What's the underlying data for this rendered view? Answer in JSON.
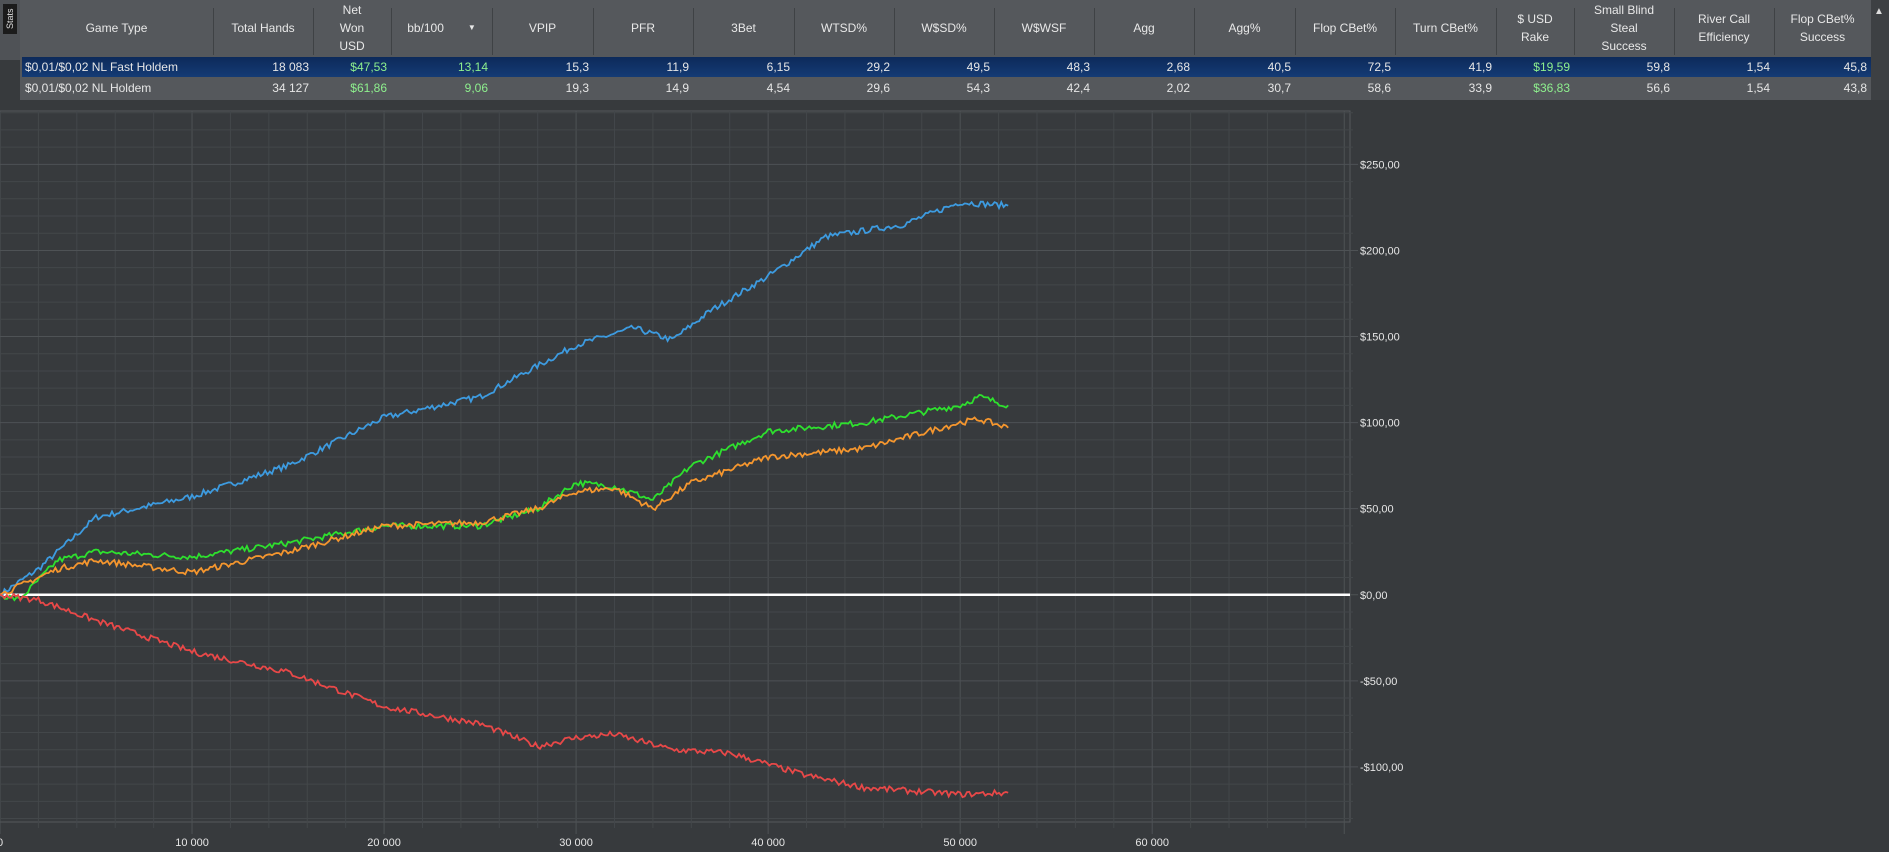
{
  "stats_tab": "Stats",
  "columns": [
    "Game Type",
    "Total Hands",
    "Net\nWon\nUSD",
    "bb/100",
    "VPIP",
    "PFR",
    "3Bet",
    "WTSD%",
    "W$SD%",
    "W$WSF",
    "Agg",
    "Agg%",
    "Flop CBet%",
    "Turn CBet%",
    "$ USD\nRake",
    "Small Blind\nSteal\nSuccess",
    "River Call\nEfficiency",
    "Flop CBet%\nSuccess"
  ],
  "sort_indicator": "▼",
  "scroll_up": "▲",
  "rows": [
    [
      "$0,01/$0,02 NL Fast Holdem",
      "18 083",
      "$47,53",
      "13,14",
      "15,3",
      "11,9",
      "6,15",
      "29,2",
      "49,5",
      "48,3",
      "2,68",
      "40,5",
      "72,5",
      "41,9",
      "$19,59",
      "59,8",
      "1,54",
      "45,8"
    ],
    [
      "$0,01/$0,02 NL Holdem",
      "34 127",
      "$61,86",
      "9,06",
      "19,3",
      "14,9",
      "4,54",
      "29,6",
      "54,3",
      "42,4",
      "2,02",
      "30,7",
      "58,6",
      "33,9",
      "$36,83",
      "56,6",
      "1,54",
      "43,8"
    ]
  ],
  "chart_data": {
    "type": "line",
    "title": "",
    "xlabel": "",
    "ylabel": "",
    "xlim": [
      0,
      70300
    ],
    "ylim": [
      -132,
      281
    ],
    "x_ticks": [
      0,
      10000,
      20000,
      30000,
      40000,
      50000,
      60000
    ],
    "x_tick_labels": [
      "0",
      "10 000",
      "20 000",
      "30 000",
      "40 000",
      "50 000",
      "60 000"
    ],
    "y_ticks": [
      250,
      200,
      150,
      100,
      50,
      0,
      -50,
      -100
    ],
    "y_tick_labels": [
      "$250,00",
      "$200,00",
      "$150,00",
      "$100,00",
      "$50,00",
      "$0,00",
      "-$50,00",
      "-$100,00"
    ],
    "grid": true,
    "series": [
      {
        "name": "blue",
        "color": "#3d9be0",
        "x": [
          0,
          2000,
          5000,
          10000,
          15000,
          20000,
          25000,
          30000,
          33000,
          35000,
          37000,
          40000,
          43000,
          47000,
          50000,
          52500
        ],
        "y": [
          0,
          15,
          45,
          57,
          75,
          103,
          115,
          145,
          155,
          148,
          165,
          185,
          208,
          215,
          228,
          226
        ]
      },
      {
        "name": "green",
        "color": "#2ee02e",
        "x": [
          0,
          1000,
          3000,
          5000,
          10000,
          15000,
          20000,
          25000,
          28000,
          30000,
          32000,
          34000,
          36000,
          40000,
          45000,
          50000,
          51000,
          52500
        ],
        "y": [
          0,
          -3,
          20,
          25,
          22,
          30,
          40,
          40,
          50,
          65,
          63,
          55,
          75,
          95,
          100,
          110,
          115,
          110
        ]
      },
      {
        "name": "orange",
        "color": "#f5962e",
        "x": [
          0,
          1000,
          3000,
          5000,
          10000,
          15000,
          20000,
          25000,
          28000,
          30000,
          32000,
          34000,
          36000,
          40000,
          45000,
          50000,
          51000,
          52500
        ],
        "y": [
          0,
          5,
          15,
          20,
          13,
          25,
          40,
          42,
          50,
          60,
          62,
          50,
          65,
          80,
          85,
          100,
          102,
          97
        ]
      },
      {
        "name": "red",
        "color": "#e84848",
        "x": [
          0,
          2000,
          5000,
          10000,
          15000,
          20000,
          25000,
          28000,
          30000,
          32000,
          35000,
          38000,
          42000,
          45000,
          50000,
          52500
        ],
        "y": [
          0,
          -3,
          -15,
          -33,
          -45,
          -65,
          -75,
          -88,
          -83,
          -81,
          -90,
          -92,
          -105,
          -112,
          -116,
          -115
        ]
      }
    ]
  }
}
